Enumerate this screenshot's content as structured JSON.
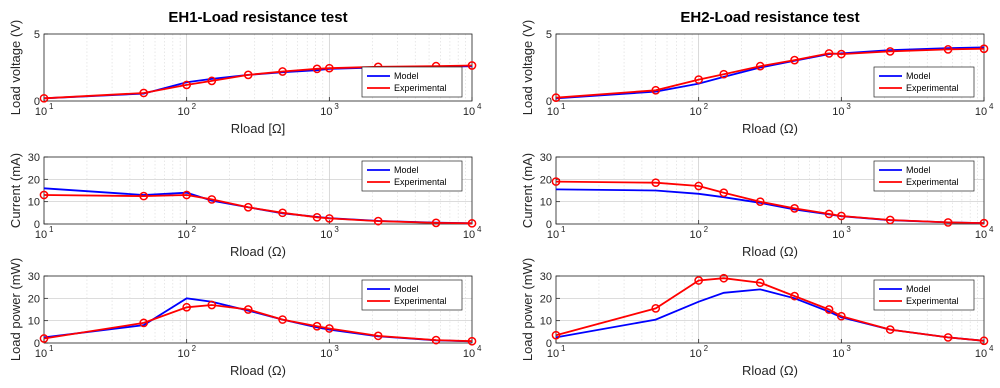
{
  "colors": {
    "model": "#0000ff",
    "experimental": "#ff0000"
  },
  "chart_data": [
    {
      "type": "line",
      "title": "EH1-Load resistance test",
      "xlabel": "Rload [Ω]",
      "ylabel": "Load voltage (V)",
      "xscale": "log",
      "xlim": [
        10,
        10000
      ],
      "ylim": [
        0,
        5
      ],
      "yticks": [
        0,
        5
      ],
      "grid": true,
      "legend": "bottom-right",
      "series": [
        {
          "name": "Model",
          "x": [
            10,
            50,
            100,
            150,
            270,
            470,
            820,
            1000,
            2200,
            5600,
            10000
          ],
          "y": [
            0.2,
            0.55,
            1.4,
            1.65,
            1.95,
            2.15,
            2.3,
            2.4,
            2.5,
            2.55,
            2.6
          ]
        },
        {
          "name": "Experimental",
          "x": [
            10,
            50,
            100,
            150,
            270,
            470,
            820,
            1000,
            2200,
            5600,
            10000
          ],
          "y": [
            0.2,
            0.6,
            1.2,
            1.5,
            1.95,
            2.2,
            2.4,
            2.45,
            2.55,
            2.6,
            2.65
          ]
        }
      ]
    },
    {
      "type": "line",
      "title": "EH2-Load resistance test",
      "xlabel": "Rload (Ω)",
      "ylabel": "Load voltage (V)",
      "xscale": "log",
      "xlim": [
        10,
        10000
      ],
      "ylim": [
        0,
        5
      ],
      "yticks": [
        0,
        5
      ],
      "grid": true,
      "legend": "bottom-right",
      "series": [
        {
          "name": "Model",
          "x": [
            10,
            50,
            100,
            150,
            270,
            470,
            820,
            1000,
            2200,
            5600,
            10000
          ],
          "y": [
            0.2,
            0.7,
            1.3,
            1.8,
            2.5,
            3.0,
            3.5,
            3.55,
            3.8,
            3.95,
            4.0
          ]
        },
        {
          "name": "Experimental",
          "x": [
            10,
            50,
            100,
            150,
            270,
            470,
            820,
            1000,
            2200,
            5600,
            10000
          ],
          "y": [
            0.25,
            0.8,
            1.6,
            2.0,
            2.6,
            3.05,
            3.55,
            3.5,
            3.7,
            3.85,
            3.9
          ]
        }
      ]
    },
    {
      "type": "line",
      "title": "",
      "xlabel": "Rload (Ω)",
      "ylabel": "Current (mA)",
      "xscale": "log",
      "xlim": [
        10,
        10000
      ],
      "ylim": [
        0,
        30
      ],
      "yticks": [
        0,
        10,
        20,
        30
      ],
      "grid": true,
      "legend": "top-right",
      "series": [
        {
          "name": "Model",
          "x": [
            10,
            50,
            100,
            150,
            270,
            470,
            820,
            1000,
            2200,
            5600,
            10000
          ],
          "y": [
            16,
            13,
            14,
            10.5,
            7.5,
            4.8,
            3.2,
            2.6,
            1.4,
            0.6,
            0.3
          ]
        },
        {
          "name": "Experimental",
          "x": [
            10,
            50,
            100,
            150,
            270,
            470,
            820,
            1000,
            2200,
            5600,
            10000
          ],
          "y": [
            13,
            12.5,
            13,
            11,
            7.5,
            5,
            3,
            2.5,
            1.3,
            0.5,
            0.3
          ]
        }
      ]
    },
    {
      "type": "line",
      "title": "",
      "xlabel": "Rload (Ω)",
      "ylabel": "Current (mA)",
      "xscale": "log",
      "xlim": [
        10,
        10000
      ],
      "ylim": [
        0,
        30
      ],
      "yticks": [
        0,
        10,
        20,
        30
      ],
      "grid": true,
      "legend": "top-right",
      "series": [
        {
          "name": "Model",
          "x": [
            10,
            50,
            100,
            150,
            270,
            470,
            820,
            1000,
            2200,
            5600,
            10000
          ],
          "y": [
            15.5,
            15,
            13.5,
            12,
            9.5,
            6.5,
            4.3,
            3.5,
            1.7,
            0.7,
            0.4
          ]
        },
        {
          "name": "Experimental",
          "x": [
            10,
            50,
            100,
            150,
            270,
            470,
            820,
            1000,
            2200,
            5600,
            10000
          ],
          "y": [
            19,
            18.5,
            17,
            14,
            10,
            7,
            4.5,
            3.6,
            1.8,
            0.7,
            0.4
          ]
        }
      ]
    },
    {
      "type": "line",
      "title": "",
      "xlabel": "Rload (Ω)",
      "ylabel": "Load power (mW)",
      "xscale": "log",
      "xlim": [
        10,
        10000
      ],
      "ylim": [
        0,
        30
      ],
      "yticks": [
        0,
        10,
        20,
        30
      ],
      "grid": true,
      "legend": "top-right",
      "series": [
        {
          "name": "Model",
          "x": [
            10,
            50,
            100,
            150,
            270,
            470,
            820,
            1000,
            2200,
            5600,
            10000
          ],
          "y": [
            2.5,
            8,
            20,
            18.5,
            14.5,
            10.5,
            7,
            6,
            3,
            1.2,
            0.7
          ]
        },
        {
          "name": "Experimental",
          "x": [
            10,
            50,
            100,
            150,
            270,
            470,
            820,
            1000,
            2200,
            5600,
            10000
          ],
          "y": [
            2,
            9,
            16,
            17,
            15,
            10.5,
            7.5,
            6.5,
            3.2,
            1.3,
            0.8
          ]
        }
      ]
    },
    {
      "type": "line",
      "title": "",
      "xlabel": "Rload (Ω)",
      "ylabel": "Load power (mW)",
      "xscale": "log",
      "xlim": [
        10,
        10000
      ],
      "ylim": [
        0,
        30
      ],
      "yticks": [
        0,
        10,
        20,
        30
      ],
      "grid": true,
      "legend": "top-right",
      "series": [
        {
          "name": "Model",
          "x": [
            10,
            50,
            100,
            150,
            270,
            470,
            820,
            1000,
            2200,
            5600,
            10000
          ],
          "y": [
            2.5,
            10.5,
            18.5,
            22.5,
            24,
            20,
            14,
            11.5,
            6,
            2.5,
            1
          ]
        },
        {
          "name": "Experimental",
          "x": [
            10,
            50,
            100,
            150,
            270,
            470,
            820,
            1000,
            2200,
            5600,
            10000
          ],
          "y": [
            3.5,
            15.5,
            28,
            29,
            27,
            21,
            15,
            12,
            6,
            2.5,
            1
          ]
        }
      ]
    }
  ]
}
